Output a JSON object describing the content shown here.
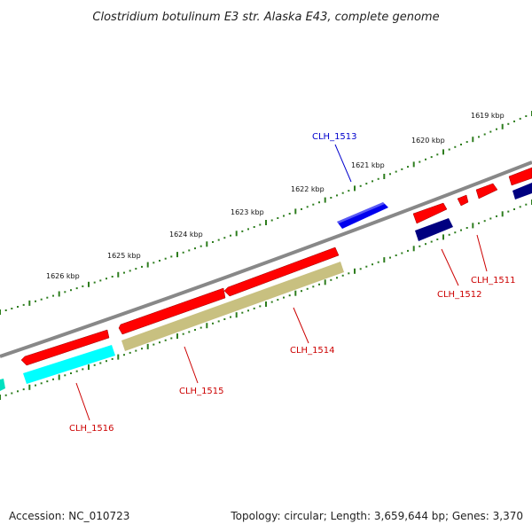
{
  "title": "Clostridium botulinum E3 str. Alaska E43, complete genome",
  "accession_text": "Accession: NC_010723",
  "summary_text": "Topology: circular; Length: 3,659,644 bp; Genes: 3,370",
  "colors": {
    "backbone": "#888888",
    "tick_marks": "#2e7d1e",
    "cds_forward": "#ff0000",
    "cds_reverse": "#ff0000",
    "gene_forward": "#0000ee",
    "gene_reverse_dark": "#000080",
    "cyan_feature": "#00ffff",
    "olive_feature": "#c8c080",
    "teal_feature": "#00e0c0",
    "label_red": "#cc0000",
    "label_blue": "#0000cc"
  },
  "kbp_labels": [
    "1619 kbp",
    "1620 kbp",
    "1621 kbp",
    "1622 kbp",
    "1623 kbp",
    "1624 kbp",
    "1625 kbp",
    "1626 kbp"
  ],
  "gene_labels": {
    "clh_1511": "CLH_1511",
    "clh_1512": "CLH_1512",
    "clh_1513": "CLH_1513",
    "clh_1514": "CLH_1514",
    "clh_1515": "CLH_1515",
    "clh_1516": "CLH_1516"
  }
}
